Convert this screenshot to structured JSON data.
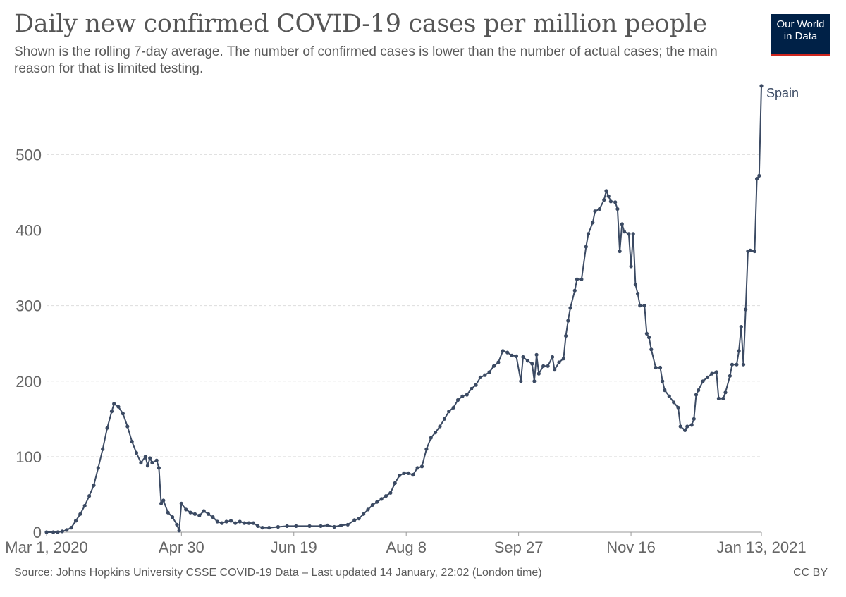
{
  "header": {
    "title": "Daily new confirmed COVID-19 cases per million people",
    "subtitle": "Shown is the rolling 7-day average. The number of confirmed cases is lower than the number of actual cases; the main reason for that is limited testing.",
    "logo_line1": "Our World",
    "logo_line2": "in Data"
  },
  "footer": {
    "source": "Source: Johns Hopkins University CSSE COVID-19 Data – Last updated 14 January, 22:02 (London time)",
    "license": "CC BY"
  },
  "colors": {
    "line": "#3b4a63",
    "grid": "#dddddd",
    "axis_text": "#666666",
    "logo_bg": "#002147",
    "logo_stripe": "#ce261e"
  },
  "chart_data": {
    "type": "line",
    "title": "Daily new confirmed COVID-19 cases per million people",
    "xlabel": "",
    "ylabel": "",
    "grid": "horizontal dashed",
    "legend": "inline label at line end",
    "ylim": [
      0,
      590
    ],
    "yticks": [
      0,
      100,
      200,
      300,
      400,
      500
    ],
    "xrange": [
      "2020-03-01",
      "2021-01-13"
    ],
    "xticks": [
      {
        "date": "2020-03-01",
        "label": "Mar 1, 2020"
      },
      {
        "date": "2020-04-30",
        "label": "Apr 30"
      },
      {
        "date": "2020-06-19",
        "label": "Jun 19"
      },
      {
        "date": "2020-08-08",
        "label": "Aug 8"
      },
      {
        "date": "2020-09-27",
        "label": "Sep 27"
      },
      {
        "date": "2020-11-16",
        "label": "Nov 16"
      },
      {
        "date": "2021-01-13",
        "label": "Jan 13, 2021"
      }
    ],
    "series": [
      {
        "name": "Spain",
        "points": [
          [
            "2020-03-01",
            0
          ],
          [
            "2020-03-04",
            0
          ],
          [
            "2020-03-06",
            0
          ],
          [
            "2020-03-08",
            1
          ],
          [
            "2020-03-10",
            3
          ],
          [
            "2020-03-12",
            6
          ],
          [
            "2020-03-14",
            15
          ],
          [
            "2020-03-16",
            24
          ],
          [
            "2020-03-18",
            35
          ],
          [
            "2020-03-20",
            48
          ],
          [
            "2020-03-22",
            62
          ],
          [
            "2020-03-24",
            85
          ],
          [
            "2020-03-26",
            110
          ],
          [
            "2020-03-28",
            138
          ],
          [
            "2020-03-30",
            160
          ],
          [
            "2020-03-31",
            170
          ],
          [
            "2020-04-02",
            166
          ],
          [
            "2020-04-04",
            157
          ],
          [
            "2020-04-06",
            140
          ],
          [
            "2020-04-08",
            120
          ],
          [
            "2020-04-10",
            105
          ],
          [
            "2020-04-12",
            92
          ],
          [
            "2020-04-14",
            100
          ],
          [
            "2020-04-15",
            88
          ],
          [
            "2020-04-16",
            98
          ],
          [
            "2020-04-17",
            92
          ],
          [
            "2020-04-19",
            95
          ],
          [
            "2020-04-20",
            85
          ],
          [
            "2020-04-21",
            38
          ],
          [
            "2020-04-22",
            42
          ],
          [
            "2020-04-24",
            26
          ],
          [
            "2020-04-26",
            20
          ],
          [
            "2020-04-28",
            10
          ],
          [
            "2020-04-29",
            2
          ],
          [
            "2020-04-30",
            38
          ],
          [
            "2020-05-02",
            30
          ],
          [
            "2020-05-04",
            26
          ],
          [
            "2020-05-06",
            24
          ],
          [
            "2020-05-08",
            22
          ],
          [
            "2020-05-10",
            28
          ],
          [
            "2020-05-12",
            24
          ],
          [
            "2020-05-14",
            20
          ],
          [
            "2020-05-16",
            14
          ],
          [
            "2020-05-18",
            12
          ],
          [
            "2020-05-20",
            14
          ],
          [
            "2020-05-22",
            15
          ],
          [
            "2020-05-24",
            12
          ],
          [
            "2020-05-26",
            14
          ],
          [
            "2020-05-28",
            12
          ],
          [
            "2020-05-30",
            12
          ],
          [
            "2020-06-01",
            12
          ],
          [
            "2020-06-03",
            8
          ],
          [
            "2020-06-05",
            6
          ],
          [
            "2020-06-08",
            6
          ],
          [
            "2020-06-12",
            7
          ],
          [
            "2020-06-16",
            8
          ],
          [
            "2020-06-20",
            8
          ],
          [
            "2020-06-26",
            8
          ],
          [
            "2020-07-01",
            8
          ],
          [
            "2020-07-04",
            9
          ],
          [
            "2020-07-07",
            7
          ],
          [
            "2020-07-10",
            9
          ],
          [
            "2020-07-13",
            10
          ],
          [
            "2020-07-16",
            16
          ],
          [
            "2020-07-18",
            18
          ],
          [
            "2020-07-20",
            24
          ],
          [
            "2020-07-22",
            30
          ],
          [
            "2020-07-24",
            36
          ],
          [
            "2020-07-26",
            40
          ],
          [
            "2020-07-28",
            44
          ],
          [
            "2020-07-30",
            48
          ],
          [
            "2020-08-01",
            52
          ],
          [
            "2020-08-03",
            65
          ],
          [
            "2020-08-05",
            75
          ],
          [
            "2020-08-07",
            78
          ],
          [
            "2020-08-09",
            78
          ],
          [
            "2020-08-11",
            76
          ],
          [
            "2020-08-13",
            85
          ],
          [
            "2020-08-15",
            87
          ],
          [
            "2020-08-17",
            110
          ],
          [
            "2020-08-19",
            125
          ],
          [
            "2020-08-21",
            132
          ],
          [
            "2020-08-23",
            140
          ],
          [
            "2020-08-25",
            150
          ],
          [
            "2020-08-27",
            160
          ],
          [
            "2020-08-29",
            165
          ],
          [
            "2020-08-31",
            175
          ],
          [
            "2020-09-02",
            180
          ],
          [
            "2020-09-04",
            182
          ],
          [
            "2020-09-06",
            190
          ],
          [
            "2020-09-08",
            195
          ],
          [
            "2020-09-10",
            205
          ],
          [
            "2020-09-12",
            208
          ],
          [
            "2020-09-14",
            212
          ],
          [
            "2020-09-16",
            220
          ],
          [
            "2020-09-18",
            225
          ],
          [
            "2020-09-20",
            240
          ],
          [
            "2020-09-22",
            238
          ],
          [
            "2020-09-24",
            234
          ],
          [
            "2020-09-26",
            233
          ],
          [
            "2020-09-28",
            200
          ],
          [
            "2020-09-29",
            232
          ],
          [
            "2020-10-01",
            227
          ],
          [
            "2020-10-03",
            223
          ],
          [
            "2020-10-04",
            200
          ],
          [
            "2020-10-05",
            235
          ],
          [
            "2020-10-06",
            210
          ],
          [
            "2020-10-08",
            220
          ],
          [
            "2020-10-10",
            220
          ],
          [
            "2020-10-12",
            232
          ],
          [
            "2020-10-13",
            215
          ],
          [
            "2020-10-15",
            225
          ],
          [
            "2020-10-17",
            230
          ],
          [
            "2020-10-18",
            260
          ],
          [
            "2020-10-19",
            280
          ],
          [
            "2020-10-20",
            297
          ],
          [
            "2020-10-22",
            320
          ],
          [
            "2020-10-23",
            335
          ],
          [
            "2020-10-25",
            335
          ],
          [
            "2020-10-27",
            378
          ],
          [
            "2020-10-28",
            395
          ],
          [
            "2020-10-30",
            410
          ],
          [
            "2020-10-31",
            425
          ],
          [
            "2020-11-02",
            428
          ],
          [
            "2020-11-04",
            440
          ],
          [
            "2020-11-05",
            452
          ],
          [
            "2020-11-06",
            445
          ],
          [
            "2020-11-07",
            438
          ],
          [
            "2020-11-09",
            437
          ],
          [
            "2020-11-10",
            428
          ],
          [
            "2020-11-11",
            372
          ],
          [
            "2020-11-12",
            408
          ],
          [
            "2020-11-13",
            398
          ],
          [
            "2020-11-15",
            395
          ],
          [
            "2020-11-16",
            352
          ],
          [
            "2020-11-17",
            395
          ],
          [
            "2020-11-18",
            328
          ],
          [
            "2020-11-19",
            316
          ],
          [
            "2020-11-20",
            300
          ],
          [
            "2020-11-22",
            300
          ],
          [
            "2020-11-23",
            263
          ],
          [
            "2020-11-24",
            258
          ],
          [
            "2020-11-25",
            242
          ],
          [
            "2020-11-27",
            218
          ],
          [
            "2020-11-29",
            218
          ],
          [
            "2020-11-30",
            200
          ],
          [
            "2020-12-01",
            188
          ],
          [
            "2020-12-03",
            180
          ],
          [
            "2020-12-05",
            172
          ],
          [
            "2020-12-07",
            165
          ],
          [
            "2020-12-08",
            140
          ],
          [
            "2020-12-10",
            135
          ],
          [
            "2020-12-11",
            140
          ],
          [
            "2020-12-13",
            142
          ],
          [
            "2020-12-14",
            150
          ],
          [
            "2020-12-15",
            182
          ],
          [
            "2020-12-16",
            188
          ],
          [
            "2020-12-18",
            200
          ],
          [
            "2020-12-20",
            205
          ],
          [
            "2020-12-22",
            210
          ],
          [
            "2020-12-24",
            212
          ],
          [
            "2020-12-25",
            177
          ],
          [
            "2020-12-27",
            177
          ],
          [
            "2020-12-28",
            185
          ],
          [
            "2020-12-30",
            207
          ],
          [
            "2020-12-31",
            222
          ],
          [
            "2021-01-02",
            222
          ],
          [
            "2021-01-03",
            240
          ],
          [
            "2021-01-04",
            272
          ],
          [
            "2021-01-05",
            222
          ],
          [
            "2021-01-06",
            295
          ],
          [
            "2021-01-07",
            372
          ],
          [
            "2021-01-08",
            373
          ],
          [
            "2021-01-10",
            372
          ],
          [
            "2021-01-11",
            468
          ],
          [
            "2021-01-12",
            472
          ],
          [
            "2021-01-13",
            591
          ]
        ]
      }
    ]
  }
}
